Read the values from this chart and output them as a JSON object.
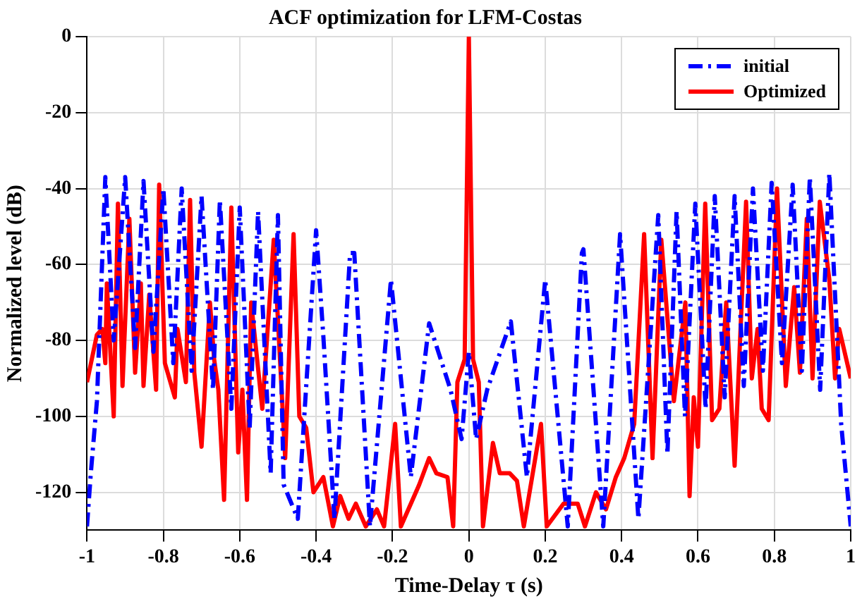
{
  "chart_data": {
    "type": "line",
    "title": "ACF optimization for LFM-Costas",
    "xlabel": "Time-Delay τ (s)",
    "ylabel": "Normalized level (dB)",
    "xlim": [
      -1,
      1
    ],
    "xticks": [
      -1,
      -0.8,
      -0.6,
      -0.4,
      -0.2,
      0,
      0.2,
      0.4,
      0.6,
      0.8,
      1
    ],
    "ylim": [
      -130,
      0
    ],
    "yticks": [
      -120,
      -100,
      -80,
      -60,
      -40,
      -20,
      0
    ],
    "grid": true,
    "legend": "top right",
    "marker": "none",
    "series": [
      {
        "name": "initial",
        "color": "#0000ff",
        "line_style": "dashed",
        "x": [
          -1,
          -0.99,
          -0.974,
          -0.952,
          -0.93,
          -0.9,
          -0.874,
          -0.852,
          -0.826,
          -0.8,
          -0.774,
          -0.752,
          -0.726,
          -0.7,
          -0.67,
          -0.652,
          -0.622,
          -0.6,
          -0.574,
          -0.552,
          -0.519,
          -0.5,
          -0.485,
          -0.448,
          -0.4,
          -0.381,
          -0.352,
          -0.311,
          -0.3,
          -0.259,
          -0.204,
          -0.152,
          -0.104,
          -0.048,
          -0.019,
          0,
          0.019,
          0.048,
          0.11,
          0.152,
          0.2,
          0.259,
          0.296,
          0.3,
          0.352,
          0.396,
          0.444,
          0.496,
          0.52,
          0.544,
          0.566,
          0.593,
          0.62,
          0.644,
          0.67,
          0.696,
          0.72,
          0.744,
          0.77,
          0.793,
          0.82,
          0.848,
          0.872,
          0.893,
          0.92,
          0.944,
          0.975,
          1
        ],
        "values": [
          -129,
          -115,
          -96,
          -37,
          -80,
          -37,
          -82,
          -38,
          -83,
          -40,
          -86,
          -40,
          -88,
          -42,
          -93,
          -43,
          -98,
          -45,
          -103,
          -46,
          -115,
          -47,
          -118,
          -127,
          -51,
          -79,
          -127,
          -57,
          -57,
          -129,
          -64,
          -116,
          -75.5,
          -93,
          -106,
          -83,
          -106,
          -93,
          -75,
          -116,
          -64,
          -129,
          -57,
          -56,
          -129,
          -52,
          -127,
          -47,
          -110,
          -46,
          -100,
          -44,
          -98,
          -42,
          -95,
          -42,
          -92,
          -40,
          -88,
          -38.5,
          -86,
          -39,
          -88,
          -37,
          -93,
          -36,
          -102,
          -129
        ]
      },
      {
        "name": "Optimized",
        "color": "#ff0000",
        "line_style": "solid",
        "x": [
          -1,
          -0.974,
          -0.96,
          -0.952,
          -0.948,
          -0.93,
          -0.919,
          -0.907,
          -0.889,
          -0.874,
          -0.859,
          -0.852,
          -0.837,
          -0.819,
          -0.811,
          -0.796,
          -0.77,
          -0.763,
          -0.741,
          -0.73,
          -0.719,
          -0.7,
          -0.678,
          -0.667,
          -0.656,
          -0.641,
          -0.622,
          -0.604,
          -0.593,
          -0.581,
          -0.57,
          -0.541,
          -0.511,
          -0.481,
          -0.459,
          -0.444,
          -0.426,
          -0.407,
          -0.381,
          -0.356,
          -0.337,
          -0.315,
          -0.296,
          -0.27,
          -0.241,
          -0.222,
          -0.193,
          -0.178,
          -0.13,
          -0.104,
          -0.085,
          -0.056,
          -0.041,
          -0.03,
          -0.011,
          0,
          0.011,
          0.026,
          0.037,
          0.063,
          0.081,
          0.107,
          0.126,
          0.144,
          0.189,
          0.204,
          0.248,
          0.285,
          0.304,
          0.333,
          0.359,
          0.385,
          0.407,
          0.433,
          0.459,
          0.481,
          0.504,
          0.537,
          0.567,
          0.578,
          0.589,
          0.6,
          0.619,
          0.637,
          0.656,
          0.674,
          0.696,
          0.726,
          0.741,
          0.756,
          0.767,
          0.785,
          0.807,
          0.83,
          0.852,
          0.867,
          0.885,
          0.9,
          0.919,
          0.944,
          0.959,
          0.97,
          1
        ],
        "values": [
          -91,
          -78.5,
          -77,
          -86,
          -65,
          -100,
          -44,
          -92,
          -48,
          -88.5,
          -65,
          -92,
          -68,
          -93,
          -39,
          -86,
          -95,
          -77,
          -91,
          -43,
          -88.5,
          -108,
          -70,
          -85,
          -93,
          -122,
          -45,
          -109.5,
          -93,
          -122,
          -70,
          -98,
          -53.5,
          -111,
          -52,
          -100,
          -103,
          -120,
          -116,
          -129,
          -121,
          -127,
          -123,
          -129,
          -124.5,
          -129,
          -102,
          -129,
          -118,
          -111,
          -115,
          -116,
          -129,
          -91,
          -85,
          0,
          -85,
          -91,
          -129,
          -107,
          -115,
          -115,
          -117,
          -129,
          -102,
          -129,
          -123,
          -123,
          -129,
          -120,
          -124.5,
          -116,
          -111,
          -102,
          -52,
          -111,
          -53.5,
          -96,
          -70,
          -121,
          -95,
          -108,
          -44,
          -101,
          -98,
          -70,
          -113,
          -43.5,
          -90,
          -77,
          -98,
          -101,
          -40,
          -92,
          -66,
          -88.5,
          -48,
          -90,
          -43.5,
          -64,
          -90,
          -77,
          -90
        ]
      }
    ]
  }
}
